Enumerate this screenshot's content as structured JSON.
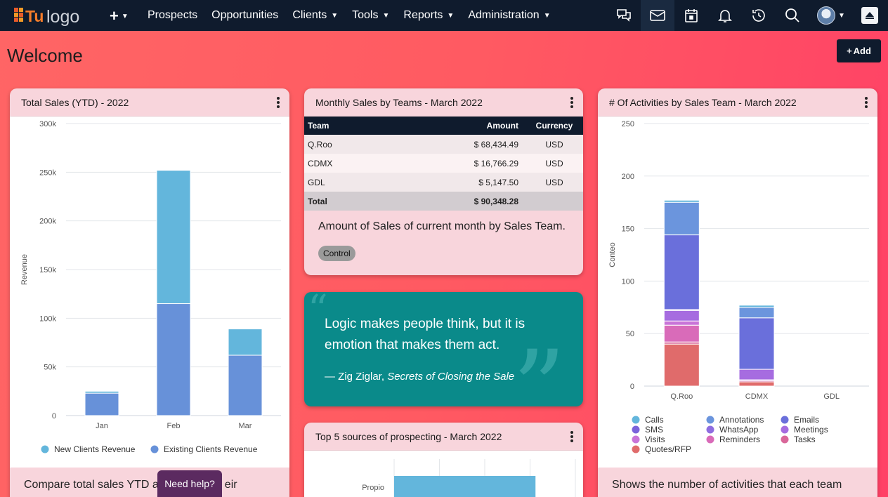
{
  "brand": {
    "logo_text": "logo",
    "logo_prefix": "Tu"
  },
  "nav": {
    "plus_label": "+",
    "items": [
      {
        "label": "Prospects",
        "dropdown": false
      },
      {
        "label": "Opportunities",
        "dropdown": false
      },
      {
        "label": "Clients",
        "dropdown": true
      },
      {
        "label": "Tools",
        "dropdown": true
      },
      {
        "label": "Reports",
        "dropdown": true
      },
      {
        "label": "Administration",
        "dropdown": true
      }
    ],
    "icons": [
      "chat-icon",
      "mail-icon",
      "calendar-icon",
      "bell-icon",
      "history-icon",
      "search-icon"
    ]
  },
  "page": {
    "title": "Welcome",
    "add_label": "Add"
  },
  "sales_card": {
    "title": "Total Sales (YTD) - 2022",
    "footer": "Compare total sales YTD a",
    "footer_tail": "eir"
  },
  "teams_card": {
    "title": "Monthly Sales by Teams - March 2022",
    "headers": {
      "team": "Team",
      "amount": "Amount",
      "currency": "Currency"
    },
    "rows": [
      {
        "team": "Q.Roo",
        "amount": "$ 68,434.49",
        "currency": "USD"
      },
      {
        "team": "CDMX",
        "amount": "$ 16,766.29",
        "currency": "USD"
      },
      {
        "team": "GDL",
        "amount": "$ 5,147.50",
        "currency": "USD"
      }
    ],
    "total": {
      "label": "Total",
      "amount": "$ 90,348.28"
    },
    "description": "Amount of Sales of current month by Sales Team.",
    "chip": "Control"
  },
  "quote": {
    "text": "Logic makes people think, but it is emotion that makes them act.",
    "author": "— Zig Ziglar, ",
    "source": "Secrets of Closing the Sale"
  },
  "prospect_card": {
    "title": "Top 5 sources of prospecting - March 2022"
  },
  "activities_card": {
    "title": "# Of Activities by Sales Team - March 2022",
    "footer": "Shows the number of activities that each team"
  },
  "help": {
    "label": "Need help?"
  },
  "colors": {
    "navbar": "#0f1b2d",
    "new_clients": "#63b6dc",
    "existing_clients": "#6791d9",
    "quote_bg": "#0a8a8a"
  },
  "chart_data": [
    {
      "type": "bar",
      "stacked": true,
      "categories": [
        "Jan",
        "Feb",
        "Mar"
      ],
      "ylabel": "Revenue",
      "ylim": [
        0,
        300000
      ],
      "yticks": [
        0,
        50000,
        100000,
        150000,
        200000,
        250000,
        300000
      ],
      "ytick_labels": [
        "0",
        "50k",
        "100k",
        "150k",
        "200k",
        "250k",
        "300k"
      ],
      "legend_position": "bottom",
      "series": [
        {
          "name": "Existing Clients Revenue",
          "color": "#6791d9",
          "values": [
            23000,
            115000,
            62000
          ]
        },
        {
          "name": "New Clients Revenue",
          "color": "#63b6dc",
          "values": [
            2000,
            137000,
            27000
          ]
        }
      ],
      "legend_order": [
        "New Clients Revenue",
        "Existing Clients Revenue"
      ]
    },
    {
      "type": "bar",
      "stacked": true,
      "categories": [
        "Q.Roo",
        "CDMX",
        "GDL"
      ],
      "ylabel": "Conteo",
      "ylim": [
        0,
        250
      ],
      "yticks": [
        0,
        50,
        100,
        150,
        200,
        250
      ],
      "legend_position": "bottom",
      "series": [
        {
          "name": "Quotes/RFP",
          "color": "#e06b6b",
          "values": [
            40,
            4,
            0
          ]
        },
        {
          "name": "Tasks",
          "color": "#d9679a",
          "values": [
            2,
            1,
            0
          ]
        },
        {
          "name": "Reminders",
          "color": "#d96bb9",
          "values": [
            16,
            0,
            0
          ]
        },
        {
          "name": "Visits",
          "color": "#c974d8",
          "values": [
            4,
            1,
            0
          ]
        },
        {
          "name": "Meetings",
          "color": "#a66ce0",
          "values": [
            10,
            10,
            0
          ]
        },
        {
          "name": "WhatsApp",
          "color": "#8f6de0",
          "values": [
            1,
            0,
            0
          ]
        },
        {
          "name": "SMS",
          "color": "#7b63db",
          "values": [
            0,
            0,
            0
          ]
        },
        {
          "name": "Emails",
          "color": "#6a6fdb",
          "values": [
            71,
            49,
            0
          ]
        },
        {
          "name": "Annotations",
          "color": "#6b95dd",
          "values": [
            31,
            10,
            0
          ]
        },
        {
          "name": "Calls",
          "color": "#63b6dc",
          "values": [
            2,
            2,
            0
          ]
        }
      ],
      "legend_order": [
        "Calls",
        "Annotations",
        "Emails",
        "SMS",
        "WhatsApp",
        "Meetings",
        "Visits",
        "Reminders",
        "Tasks",
        "Quotes/RFP"
      ]
    },
    {
      "type": "bar",
      "orientation": "horizontal",
      "categories": [
        "Propio"
      ],
      "series": [
        {
          "name": "",
          "color": "#63b6dc",
          "values": [
            1
          ]
        }
      ]
    }
  ]
}
